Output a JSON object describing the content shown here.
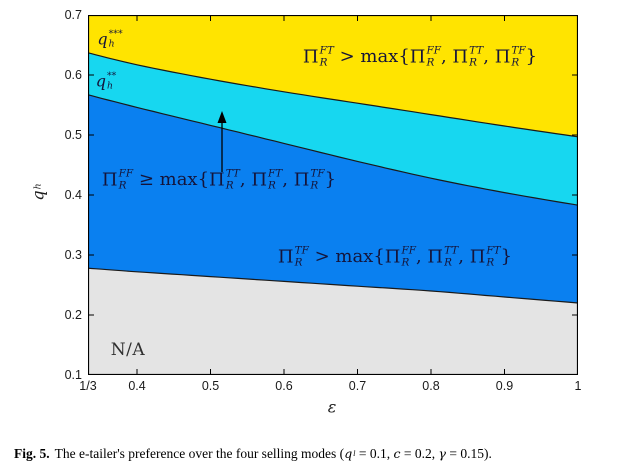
{
  "figure": {
    "caption_prefix": "Fig. 5.",
    "caption_tokens": [
      [
        "t",
        "The e-tailer's preference over the four selling modes ("
      ],
      [
        "m",
        "q",
        "",
        "l"
      ],
      [
        "t",
        " = 0.1, "
      ],
      [
        "m",
        "c",
        "",
        ""
      ],
      [
        "t",
        " = 0.2, "
      ],
      [
        "m",
        "γ",
        "",
        ""
      ],
      [
        "t",
        " = 0.15)."
      ]
    ],
    "xlabel": "ε",
    "ylabel_tokens": [
      [
        "m",
        "q",
        "",
        "h"
      ]
    ]
  },
  "plot": {
    "colors": {
      "yellow_region": "#ffe400",
      "cyan_region": "#17d7f0",
      "blue_region": "#0a80f0",
      "gray_region": "#e4e4e4",
      "boundary_stroke": "#1a1a1a",
      "frame_stroke": "#000000",
      "arrow_stroke": "#000000"
    },
    "labels": {
      "ft_region_tokens": [
        [
          "m",
          "Π",
          "FT",
          "R"
        ],
        [
          "t",
          " > max{"
        ],
        [
          "m",
          "Π",
          "FF",
          "R"
        ],
        [
          "t",
          ", "
        ],
        [
          "m",
          "Π",
          "TT",
          "R"
        ],
        [
          "t",
          ", "
        ],
        [
          "m",
          "Π",
          "TF",
          "R"
        ],
        [
          "t",
          "}"
        ]
      ],
      "ff_region_tokens": [
        [
          "m",
          "Π",
          "FF",
          "R"
        ],
        [
          "t",
          " ≥ max{"
        ],
        [
          "m",
          "Π",
          "TT",
          "R"
        ],
        [
          "t",
          ", "
        ],
        [
          "m",
          "Π",
          "FT",
          "R"
        ],
        [
          "t",
          ", "
        ],
        [
          "m",
          "Π",
          "TF",
          "R"
        ],
        [
          "t",
          "}"
        ]
      ],
      "tf_region_tokens": [
        [
          "m",
          "Π",
          "TF",
          "R"
        ],
        [
          "t",
          " > max{"
        ],
        [
          "m",
          "Π",
          "FF",
          "R"
        ],
        [
          "t",
          ", "
        ],
        [
          "m",
          "Π",
          "TT",
          "R"
        ],
        [
          "t",
          ", "
        ],
        [
          "m",
          "Π",
          "FT",
          "R"
        ],
        [
          "t",
          "}"
        ]
      ],
      "na_tokens": [
        [
          "t",
          "N/A"
        ]
      ],
      "qh_star3_tokens": [
        [
          "m",
          "q",
          "***",
          "h"
        ]
      ],
      "qh_star2_tokens": [
        [
          "m",
          "q",
          "**",
          "h"
        ]
      ]
    }
  },
  "chart_data": {
    "type": "area",
    "title": "",
    "xlabel": "ε",
    "ylabel": "q_h",
    "xlim": [
      0.3333,
      1.0
    ],
    "ylim": [
      0.1,
      0.7
    ],
    "grid": false,
    "legend": "none",
    "x_ticks": {
      "values": [
        0.3333,
        0.4,
        0.5,
        0.6,
        0.7,
        0.8,
        0.9,
        1.0
      ],
      "labels": [
        "1/3",
        "0.4",
        "0.5",
        "0.6",
        "0.7",
        "0.8",
        "0.9",
        "1"
      ]
    },
    "y_ticks": {
      "values": [
        0.1,
        0.2,
        0.3,
        0.4,
        0.5,
        0.6,
        0.7
      ],
      "labels": [
        "0.1",
        "0.2",
        "0.3",
        "0.4",
        "0.5",
        "0.6",
        "0.7"
      ]
    },
    "x": [
      0.3333,
      0.4,
      0.5,
      0.6,
      0.7,
      0.8,
      0.9,
      1.0
    ],
    "boundaries": {
      "q_h_star3_yellow_cyan": [
        0.637,
        0.617,
        0.593,
        0.572,
        0.553,
        0.534,
        0.515,
        0.497
      ],
      "q_h_star2_cyan_blue": [
        0.567,
        0.546,
        0.516,
        0.486,
        0.456,
        0.428,
        0.404,
        0.383
      ],
      "na_lower_blue_gray": [
        0.278,
        0.272,
        0.264,
        0.256,
        0.248,
        0.24,
        0.23,
        0.22
      ]
    },
    "regions": [
      {
        "name": "FT preferred",
        "color": "#ffe400",
        "between": [
          "q_h_star3_yellow_cyan",
          "top 0.7"
        ],
        "label": "Π_R^FT > max{Π_R^FF, Π_R^TT, Π_R^TF}"
      },
      {
        "name": "FF preferred",
        "color": "#17d7f0",
        "between": [
          "q_h_star2_cyan_blue",
          "q_h_star3_yellow_cyan"
        ],
        "label": "Π_R^FF ≥ max{Π_R^TT, Π_R^FT, Π_R^TF}"
      },
      {
        "name": "TF preferred",
        "color": "#0a80f0",
        "between": [
          "na_lower_blue_gray",
          "q_h_star2_cyan_blue"
        ],
        "label": "Π_R^TF > max{Π_R^FF, Π_R^TT, Π_R^FT}"
      },
      {
        "name": "N/A",
        "color": "#e4e4e4",
        "between": [
          "bottom 0.1",
          "na_lower_blue_gray"
        ],
        "label": "N/A"
      }
    ],
    "annotations": [
      {
        "text": "q_h***",
        "meaning": "boundary between yellow and cyan regions"
      },
      {
        "text": "q_h**",
        "meaning": "boundary between cyan and blue regions"
      },
      {
        "text": "arrow",
        "meaning": "points from FF label up into the cyan FF region"
      }
    ]
  }
}
